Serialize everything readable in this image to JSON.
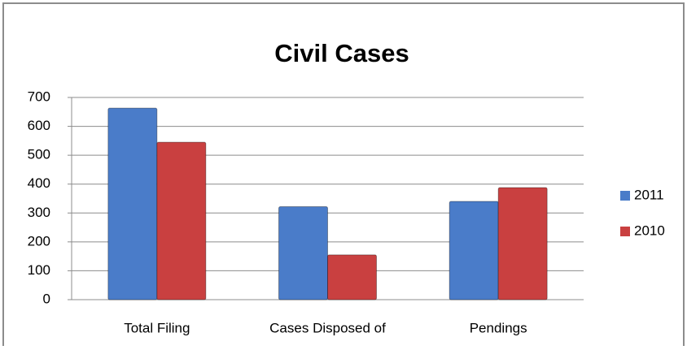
{
  "chart_data": {
    "type": "bar",
    "title": "Civil Cases",
    "categories": [
      "Total Filing",
      "Cases Disposed of",
      "Pendings"
    ],
    "series": [
      {
        "name": "2011",
        "color": "#4a7cc9",
        "values": [
          663,
          322,
          340
        ]
      },
      {
        "name": "2010",
        "color": "#c94040",
        "values": [
          545,
          155,
          388
        ]
      }
    ],
    "ylim": [
      0,
      700
    ],
    "yticks": [
      0,
      100,
      200,
      300,
      400,
      500,
      600,
      700
    ],
    "grid": true,
    "legend": "right"
  }
}
